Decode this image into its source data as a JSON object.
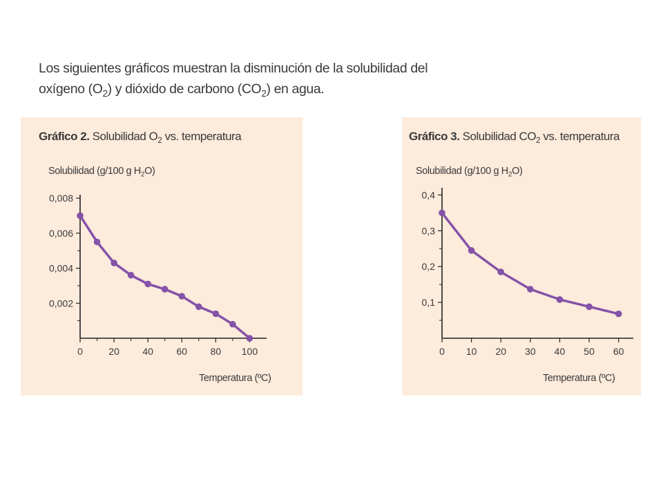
{
  "intro": {
    "line1": "Los siguientes gráficos muestran la disminución de la solubilidad del",
    "line2_a": "oxígeno (O",
    "line2_sub1": "2",
    "line2_b": ") y dióxido de carbono (CO",
    "line2_sub2": "2",
    "line2_c": ") en agua."
  },
  "colors": {
    "panel_bg": "#fdebdc",
    "series": "#8452a8",
    "axis": "#222222",
    "text": "#3a3a3a"
  },
  "chart_data": [
    {
      "type": "line",
      "title_bold": "Gráfico 2.",
      "title_a": " Solubilidad O",
      "title_sub": "2",
      "title_b": " vs. temperatura",
      "ylabel_a": "Solubilidad (g/100 g H",
      "ylabel_sub": "2",
      "ylabel_b": "O)",
      "xlabel": "Temperatura (ºC)",
      "x": [
        0,
        10,
        20,
        30,
        40,
        50,
        60,
        70,
        80,
        90,
        100
      ],
      "y": [
        0.007,
        0.0055,
        0.0043,
        0.0036,
        0.0031,
        0.0028,
        0.0024,
        0.0018,
        0.0014,
        0.0008,
        0.0
      ],
      "xlim": [
        0,
        110
      ],
      "ylim": [
        0,
        0.0082
      ],
      "xticks": [
        0,
        20,
        40,
        60,
        80,
        100
      ],
      "xtick_labels": [
        "0",
        "20",
        "40",
        "60",
        "80",
        "100"
      ],
      "xminor": [
        10,
        30,
        50,
        70,
        90
      ],
      "yticks": [
        0.002,
        0.004,
        0.006,
        0.008
      ],
      "ytick_labels": [
        "0,002",
        "0,004",
        "0,006",
        "0,008"
      ],
      "yminor": [
        0.001,
        0.003,
        0.005,
        0.007
      ],
      "grid": false
    },
    {
      "type": "line",
      "title_bold": "Gráfico 3.",
      "title_a": " Solubilidad CO",
      "title_sub": "2",
      "title_b": " vs. temperatura",
      "ylabel_a": "Solubilidad (g/100 g H",
      "ylabel_sub": "2",
      "ylabel_b": "O)",
      "xlabel": "Temperatura (ºC)",
      "x": [
        0,
        10,
        20,
        30,
        40,
        50,
        60
      ],
      "y": [
        0.35,
        0.245,
        0.185,
        0.137,
        0.108,
        0.088,
        0.068
      ],
      "xlim": [
        0,
        65
      ],
      "ylim": [
        0,
        0.42
      ],
      "xticks": [
        0,
        10,
        20,
        30,
        40,
        50,
        60
      ],
      "xtick_labels": [
        "0",
        "10",
        "20",
        "30",
        "40",
        "50",
        "60"
      ],
      "xminor": [],
      "yticks": [
        0.1,
        0.2,
        0.3,
        0.4
      ],
      "ytick_labels": [
        "0,1",
        "0,2",
        "0,3",
        "0,4"
      ],
      "yminor": [
        0.05,
        0.15,
        0.25,
        0.35
      ],
      "grid": false
    }
  ]
}
